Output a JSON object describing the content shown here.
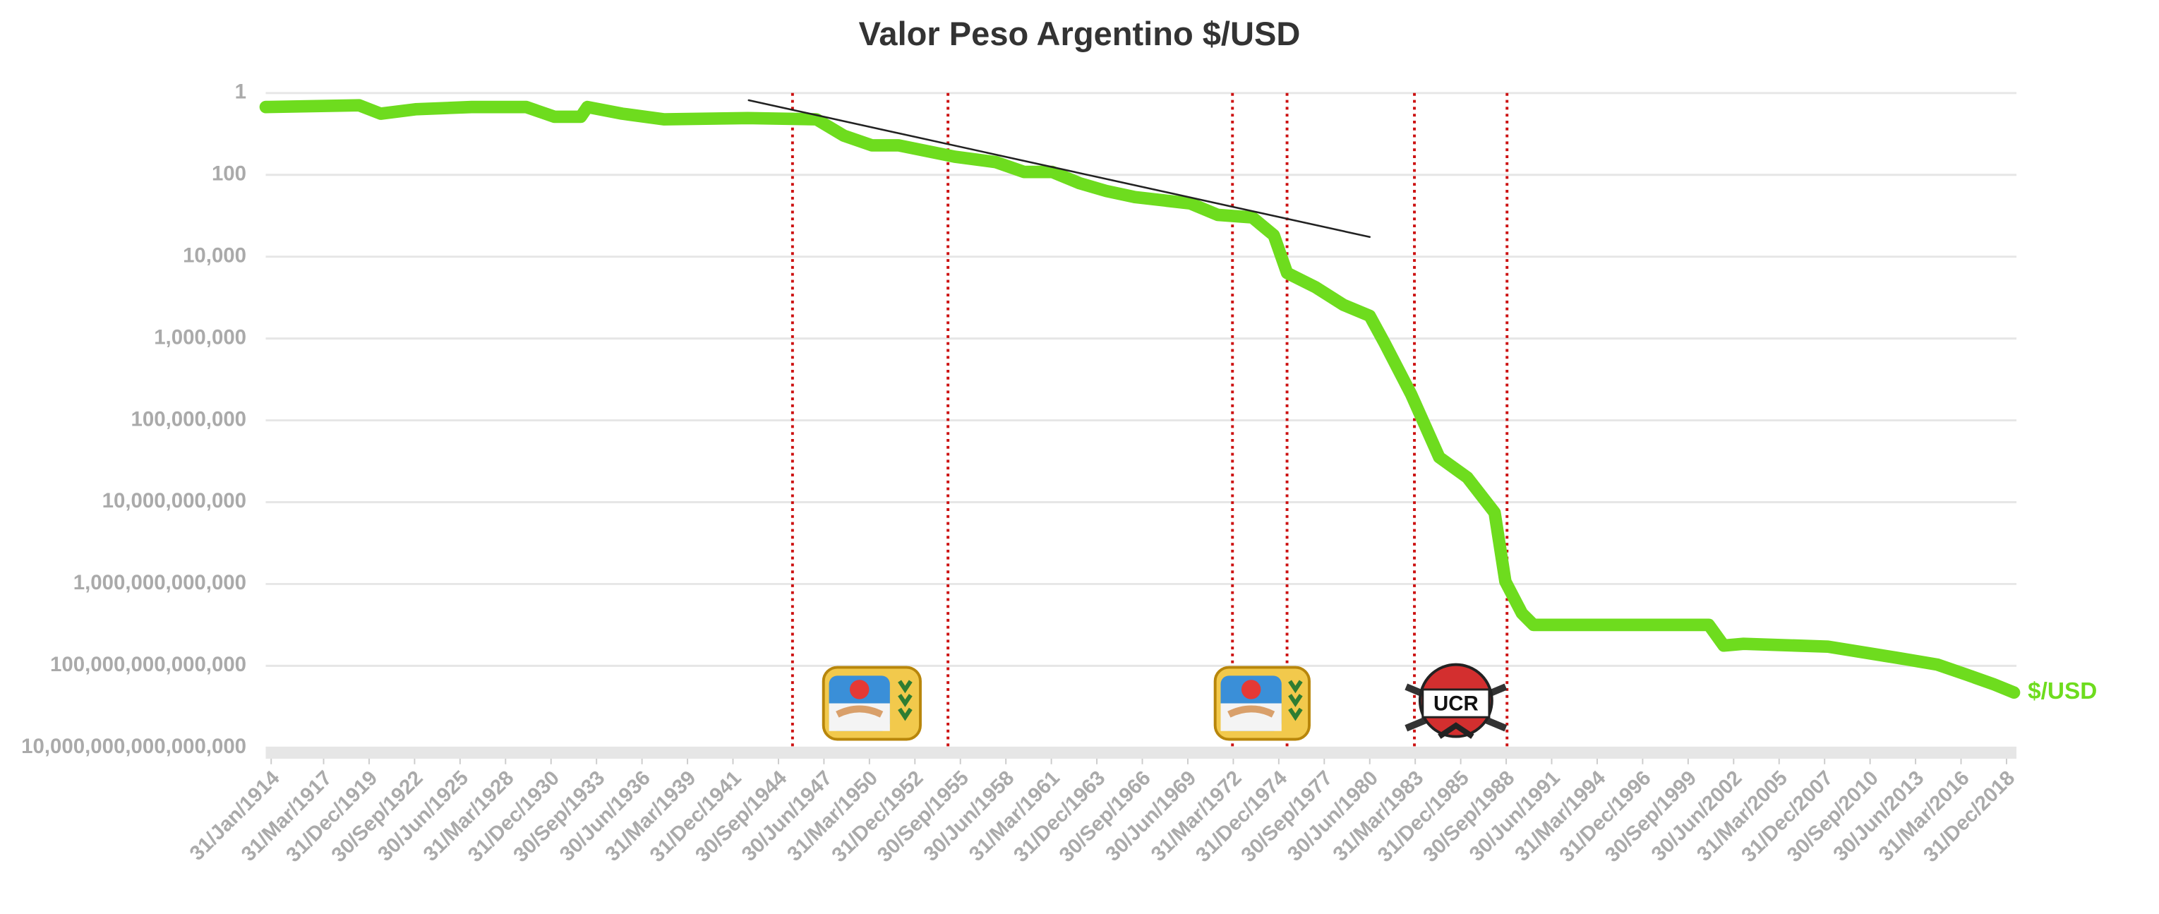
{
  "chart_data": {
    "type": "line",
    "title": "Valor Peso Argentino $/USD",
    "log_scale": true,
    "y_inverted": true,
    "grid": true,
    "xlim": [
      1913.75,
      2019.6
    ],
    "ylim": [
      1,
      10000000000000000
    ],
    "yticks": [
      1,
      100,
      {
        "value": 10000,
        "label": "10,000"
      },
      {
        "value": 1000000,
        "label": "1,000,000"
      },
      {
        "value": 100000000,
        "label": "100,000,000"
      },
      {
        "value": 10000000000,
        "label": "10,000,000,000"
      },
      {
        "value": 1000000000000,
        "label": "1,000,000,000,000"
      },
      {
        "value": 100000000000000,
        "label": "100,000,000,000,000"
      },
      {
        "value": 10000000000000000,
        "label": "10,000,000,000,000,000"
      }
    ],
    "xticks": [
      {
        "value": 1914.08,
        "label": "31/Jan/1914"
      },
      {
        "value": 1917.25,
        "label": "31/Mar/1917"
      },
      {
        "value": 1920.0,
        "label": "31/Dec/1919"
      },
      {
        "value": 1922.75,
        "label": "30/Sep/1922"
      },
      {
        "value": 1925.5,
        "label": "30/Jun/1925"
      },
      {
        "value": 1928.25,
        "label": "31/Mar/1928"
      },
      {
        "value": 1931.0,
        "label": "31/Dec/1930"
      },
      {
        "value": 1933.75,
        "label": "30/Sep/1933"
      },
      {
        "value": 1936.5,
        "label": "30/Jun/1936"
      },
      {
        "value": 1939.25,
        "label": "31/Mar/1939"
      },
      {
        "value": 1942.0,
        "label": "31/Dec/1941"
      },
      {
        "value": 1944.75,
        "label": "30/Sep/1944"
      },
      {
        "value": 1947.5,
        "label": "30/Jun/1947"
      },
      {
        "value": 1950.25,
        "label": "31/Mar/1950"
      },
      {
        "value": 1953.0,
        "label": "31/Dec/1952"
      },
      {
        "value": 1955.75,
        "label": "30/Sep/1955"
      },
      {
        "value": 1958.5,
        "label": "30/Jun/1958"
      },
      {
        "value": 1961.25,
        "label": "31/Mar/1961"
      },
      {
        "value": 1964.0,
        "label": "31/Dec/1963"
      },
      {
        "value": 1966.75,
        "label": "30/Sep/1966"
      },
      {
        "value": 1969.5,
        "label": "30/Jun/1969"
      },
      {
        "value": 1972.25,
        "label": "31/Mar/1972"
      },
      {
        "value": 1975.0,
        "label": "31/Dec/1974"
      },
      {
        "value": 1977.75,
        "label": "30/Sep/1977"
      },
      {
        "value": 1980.5,
        "label": "30/Jun/1980"
      },
      {
        "value": 1983.25,
        "label": "31/Mar/1983"
      },
      {
        "value": 1986.0,
        "label": "31/Dec/1985"
      },
      {
        "value": 1988.75,
        "label": "30/Sep/1988"
      },
      {
        "value": 1991.5,
        "label": "30/Jun/1991"
      },
      {
        "value": 1994.25,
        "label": "31/Mar/1994"
      },
      {
        "value": 1997.0,
        "label": "31/Dec/1996"
      },
      {
        "value": 1999.75,
        "label": "30/Sep/1999"
      },
      {
        "value": 2002.5,
        "label": "30/Jun/2002"
      },
      {
        "value": 2005.25,
        "label": "31/Mar/2005"
      },
      {
        "value": 2008.0,
        "label": "31/Dec/2007"
      },
      {
        "value": 2010.75,
        "label": "30/Sep/2010"
      },
      {
        "value": 2013.5,
        "label": "30/Jun/2013"
      },
      {
        "value": 2016.25,
        "label": "31/Mar/2016"
      },
      {
        "value": 2019.0,
        "label": "31/Dec/2018"
      }
    ],
    "x": [
      1913.75,
      1919.4,
      1920.7,
      1922.8,
      1926.2,
      1929.5,
      1931.2,
      1932.8,
      1933.2,
      1935.3,
      1937.85,
      1942.9,
      1947.05,
      1948.7,
      1950.4,
      1952,
      1955.4,
      1957.9,
      1959.6,
      1961.3,
      1962.95,
      1964.6,
      1966.3,
      1969.65,
      1971.3,
      1973.4,
      1974.7,
      1975.5,
      1977.2,
      1978.9,
      1980.5,
      1981.4,
      1983.0,
      1984.7,
      1986.4,
      1988.05,
      1988.7,
      1989.7,
      1990.4,
      2001.0,
      2001.9,
      2003.1,
      2008.2,
      2012.3,
      2014.8,
      2016.5,
      2018.2,
      2019.45
    ],
    "series": [
      {
        "name": "$/USD",
        "color": "#6edc1e",
        "values": [
          2.2,
          2,
          3.2,
          2.5,
          2.2,
          2.2,
          3.8,
          3.8,
          2.2,
          3.2,
          4.4,
          4.1,
          4.4,
          11,
          19,
          19,
          36,
          49,
          85,
          85,
          160,
          250,
          350,
          500,
          950,
          1100,
          3000,
          25000,
          55000,
          150000,
          280000,
          1300000,
          23000000,
          800000000,
          2500000000,
          18000000000,
          870000000000,
          5200000000000,
          10000000000000,
          10000000000000,
          32000000000000,
          29000000000000,
          34000000000000,
          63000000000000,
          93000000000000,
          160000000000000,
          280000000000000,
          450000000000000
        ]
      }
    ],
    "trend_line": {
      "color": "#222222",
      "x": [
        1942.95,
        1980.5
      ],
      "values": [
        1.5,
        3300
      ]
    },
    "event_lines": {
      "color": "#cc1111",
      "x": [
        1945.6,
        1955.0,
        1972.2,
        1975.5,
        1983.2,
        1988.8
      ]
    },
    "annotations": [
      "UCR"
    ]
  }
}
